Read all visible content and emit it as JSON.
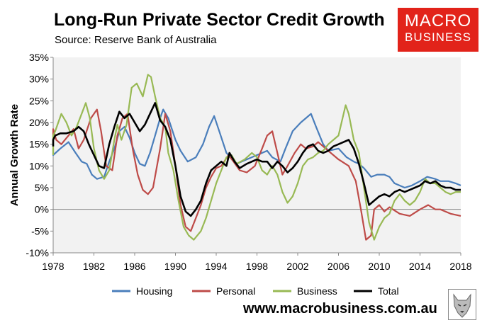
{
  "header": {
    "title": "Long-Run Private Sector Credit Growth",
    "subtitle": "Source: Reserve Bank of Australia"
  },
  "logo": {
    "line1": "MACRO",
    "line2": "BUSINESS"
  },
  "footer": {
    "url": "www.macrobusiness.com.au"
  },
  "colors": {
    "Housing": "#4a7ebb",
    "Personal": "#be4b48",
    "Business": "#98b954",
    "Total": "#000000",
    "logo_bg": "#e2231a",
    "plot_bg": "#f2f2f2"
  },
  "chart_data": {
    "type": "line",
    "title": "Long-Run Private Sector Credit Growth",
    "ylabel": "Annual Growth Rate",
    "xlim": [
      1978,
      2018
    ],
    "ylim": [
      -10,
      35
    ],
    "yticks": [
      "-10%",
      "-5%",
      "0%",
      "5%",
      "10%",
      "15%",
      "20%",
      "25%",
      "30%",
      "35%"
    ],
    "xticks": [
      "1978",
      "1982",
      "1986",
      "1990",
      "1994",
      "1998",
      "2002",
      "2006",
      "2010",
      "2014",
      "2018"
    ],
    "grid": false,
    "legend_position": "bottom",
    "series": [
      {
        "name": "Housing",
        "points": [
          [
            1977.2,
            14
          ],
          [
            1978,
            12.5
          ],
          [
            1978.7,
            14
          ],
          [
            1979.5,
            15.5
          ],
          [
            1980.2,
            13
          ],
          [
            1980.8,
            11
          ],
          [
            1981.3,
            10.5
          ],
          [
            1981.8,
            8
          ],
          [
            1982.3,
            7
          ],
          [
            1983,
            7.5
          ],
          [
            1983.5,
            11
          ],
          [
            1984,
            14
          ],
          [
            1984.5,
            18
          ],
          [
            1985,
            19
          ],
          [
            1985.5,
            16.5
          ],
          [
            1986,
            13
          ],
          [
            1986.5,
            10.5
          ],
          [
            1987,
            10
          ],
          [
            1987.5,
            13
          ],
          [
            1988,
            17
          ],
          [
            1988.5,
            21
          ],
          [
            1988.8,
            23
          ],
          [
            1989.3,
            21
          ],
          [
            1990,
            16
          ],
          [
            1990.5,
            13.5
          ],
          [
            1991.2,
            11
          ],
          [
            1992,
            12
          ],
          [
            1992.7,
            15
          ],
          [
            1993.3,
            19
          ],
          [
            1993.8,
            21.5
          ],
          [
            1994.3,
            18
          ],
          [
            1995,
            13
          ],
          [
            1996,
            10.5
          ],
          [
            1997,
            11.5
          ],
          [
            1998,
            12.5
          ],
          [
            1999,
            13.5
          ],
          [
            1999.5,
            12
          ],
          [
            2000.3,
            11
          ],
          [
            2000.8,
            14
          ],
          [
            2001.5,
            18
          ],
          [
            2002.3,
            20
          ],
          [
            2002.8,
            21
          ],
          [
            2003.3,
            22
          ],
          [
            2003.8,
            19
          ],
          [
            2004.5,
            15
          ],
          [
            2005,
            13.5
          ],
          [
            2006,
            14
          ],
          [
            2006.8,
            12
          ],
          [
            2007.5,
            11
          ],
          [
            2008,
            10.5
          ],
          [
            2008.5,
            9.5
          ],
          [
            2009.2,
            7.5
          ],
          [
            2009.8,
            8
          ],
          [
            2010.5,
            8
          ],
          [
            2011,
            7.5
          ],
          [
            2011.5,
            6
          ],
          [
            2012.5,
            5
          ],
          [
            2013.2,
            5.5
          ],
          [
            2014,
            6.5
          ],
          [
            2014.7,
            7.5
          ],
          [
            2015.5,
            7
          ],
          [
            2016,
            6.5
          ],
          [
            2016.8,
            6.5
          ],
          [
            2017.5,
            6
          ],
          [
            2018,
            5.5
          ]
        ]
      },
      {
        "name": "Personal",
        "points": [
          [
            1977.2,
            16
          ],
          [
            1977.7,
            18.5
          ],
          [
            1978.3,
            16
          ],
          [
            1978.8,
            15
          ],
          [
            1979.5,
            17
          ],
          [
            1980,
            18.5
          ],
          [
            1980.5,
            14
          ],
          [
            1981,
            16
          ],
          [
            1981.7,
            21
          ],
          [
            1982.3,
            23
          ],
          [
            1982.7,
            18
          ],
          [
            1983.2,
            10
          ],
          [
            1983.8,
            9
          ],
          [
            1984.3,
            17
          ],
          [
            1984.8,
            21
          ],
          [
            1985.3,
            22
          ],
          [
            1985.8,
            14
          ],
          [
            1986.3,
            8
          ],
          [
            1986.8,
            4.5
          ],
          [
            1987.3,
            3.5
          ],
          [
            1987.8,
            5
          ],
          [
            1988.5,
            14
          ],
          [
            1989,
            22
          ],
          [
            1989.5,
            18
          ],
          [
            1990,
            10
          ],
          [
            1990.5,
            1
          ],
          [
            1991,
            -4
          ],
          [
            1991.5,
            -5
          ],
          [
            1992,
            -2
          ],
          [
            1992.5,
            1
          ],
          [
            1993,
            5
          ],
          [
            1993.5,
            7.5
          ],
          [
            1994,
            9.5
          ],
          [
            1994.5,
            10
          ],
          [
            1995.2,
            12.5
          ],
          [
            1995.7,
            11
          ],
          [
            1996.3,
            9
          ],
          [
            1997,
            8.5
          ],
          [
            1997.8,
            10
          ],
          [
            1998.5,
            14
          ],
          [
            1999,
            17
          ],
          [
            1999.5,
            18
          ],
          [
            2000,
            13
          ],
          [
            2000.5,
            8
          ],
          [
            2001,
            10
          ],
          [
            2001.7,
            13
          ],
          [
            2002.3,
            15
          ],
          [
            2002.8,
            14
          ],
          [
            2003.5,
            14.5
          ],
          [
            2004,
            15.5
          ],
          [
            2005,
            13.5
          ],
          [
            2006,
            11.5
          ],
          [
            2007,
            10
          ],
          [
            2007.7,
            6.5
          ],
          [
            2008.2,
            0
          ],
          [
            2008.7,
            -7
          ],
          [
            2009.2,
            -6
          ],
          [
            2009.5,
            0
          ],
          [
            2010,
            1
          ],
          [
            2010.5,
            -0.5
          ],
          [
            2011,
            0.5
          ],
          [
            2012,
            -1
          ],
          [
            2013,
            -1.5
          ],
          [
            2014,
            0
          ],
          [
            2014.8,
            1
          ],
          [
            2015.5,
            0
          ],
          [
            2016,
            0
          ],
          [
            2017,
            -1
          ],
          [
            2018,
            -1.5
          ]
        ]
      },
      {
        "name": "Business",
        "points": [
          [
            1977.2,
            12.5
          ],
          [
            1977.7,
            17
          ],
          [
            1978.2,
            18
          ],
          [
            1978.8,
            22
          ],
          [
            1979.3,
            20
          ],
          [
            1979.8,
            17
          ],
          [
            1980.3,
            19
          ],
          [
            1980.8,
            22
          ],
          [
            1981.2,
            24.5
          ],
          [
            1981.6,
            21
          ],
          [
            1982,
            14
          ],
          [
            1982.5,
            9
          ],
          [
            1983,
            7
          ],
          [
            1983.5,
            9
          ],
          [
            1984,
            16
          ],
          [
            1984.3,
            19.5
          ],
          [
            1984.7,
            16
          ],
          [
            1985.2,
            19.5
          ],
          [
            1985.7,
            28
          ],
          [
            1986.2,
            29
          ],
          [
            1986.8,
            26
          ],
          [
            1987.3,
            31
          ],
          [
            1987.6,
            30.5
          ],
          [
            1988,
            26
          ],
          [
            1988.5,
            21
          ],
          [
            1989,
            19
          ],
          [
            1989.3,
            13
          ],
          [
            1989.8,
            9
          ],
          [
            1990.3,
            2
          ],
          [
            1990.8,
            -4
          ],
          [
            1991.3,
            -6
          ],
          [
            1991.8,
            -7
          ],
          [
            1992.5,
            -5
          ],
          [
            1993,
            -2
          ],
          [
            1993.5,
            2
          ],
          [
            1994,
            6
          ],
          [
            1994.5,
            9
          ],
          [
            1995,
            12
          ],
          [
            1995.5,
            12.5
          ],
          [
            1996,
            10.5
          ],
          [
            1996.8,
            11.5
          ],
          [
            1997.5,
            13
          ],
          [
            1998,
            12
          ],
          [
            1998.5,
            9
          ],
          [
            1999,
            8
          ],
          [
            1999.5,
            10
          ],
          [
            2000,
            8
          ],
          [
            2000.5,
            4
          ],
          [
            2001,
            1.5
          ],
          [
            2001.5,
            3
          ],
          [
            2002,
            6
          ],
          [
            2002.5,
            10
          ],
          [
            2003,
            11.5
          ],
          [
            2003.5,
            12
          ],
          [
            2004,
            13
          ],
          [
            2004.5,
            13.5
          ],
          [
            2005,
            15
          ],
          [
            2005.5,
            16
          ],
          [
            2006,
            17
          ],
          [
            2006.5,
            22
          ],
          [
            2006.7,
            24
          ],
          [
            2007,
            22
          ],
          [
            2007.5,
            16
          ],
          [
            2008,
            13
          ],
          [
            2008.5,
            5
          ],
          [
            2009,
            -3
          ],
          [
            2009.5,
            -7
          ],
          [
            2010,
            -4
          ],
          [
            2010.5,
            -2
          ],
          [
            2011,
            -1
          ],
          [
            2011.5,
            2
          ],
          [
            2012,
            3.5
          ],
          [
            2012.5,
            2
          ],
          [
            2013,
            1
          ],
          [
            2013.5,
            2
          ],
          [
            2014,
            4
          ],
          [
            2014.5,
            7
          ],
          [
            2015,
            6
          ],
          [
            2015.5,
            6
          ],
          [
            2016,
            5
          ],
          [
            2016.5,
            4
          ],
          [
            2017,
            3.5
          ],
          [
            2017.5,
            4
          ],
          [
            2018,
            4
          ]
        ]
      },
      {
        "name": "Total",
        "points": [
          [
            1977.2,
            14.5
          ],
          [
            1977.7,
            16
          ],
          [
            1978.2,
            17
          ],
          [
            1978.7,
            17.5
          ],
          [
            1979.3,
            17.5
          ],
          [
            1980,
            18
          ],
          [
            1980.5,
            19
          ],
          [
            1981,
            18
          ],
          [
            1981.5,
            15
          ],
          [
            1982,
            12.5
          ],
          [
            1982.5,
            10
          ],
          [
            1983,
            9.5
          ],
          [
            1983.5,
            15
          ],
          [
            1984,
            19
          ],
          [
            1984.5,
            22.5
          ],
          [
            1985,
            21
          ],
          [
            1985.5,
            22
          ],
          [
            1986,
            20
          ],
          [
            1986.5,
            18
          ],
          [
            1987,
            19.5
          ],
          [
            1987.5,
            22
          ],
          [
            1988,
            24.5
          ],
          [
            1988.5,
            20.5
          ],
          [
            1989,
            19
          ],
          [
            1989.5,
            16
          ],
          [
            1990,
            10
          ],
          [
            1990.5,
            3
          ],
          [
            1991,
            -0.5
          ],
          [
            1991.5,
            -1.5
          ],
          [
            1992,
            0
          ],
          [
            1992.5,
            2
          ],
          [
            1993,
            6
          ],
          [
            1993.5,
            9
          ],
          [
            1994,
            10
          ],
          [
            1994.5,
            11
          ],
          [
            1995,
            10
          ],
          [
            1995.3,
            13
          ],
          [
            1995.8,
            11
          ],
          [
            1996.3,
            9.5
          ],
          [
            1997,
            10.5
          ],
          [
            1998,
            11.5
          ],
          [
            1998.5,
            11
          ],
          [
            1999,
            11
          ],
          [
            1999.5,
            9.5
          ],
          [
            2000,
            11
          ],
          [
            2000.5,
            10
          ],
          [
            2001,
            8.5
          ],
          [
            2001.5,
            9.5
          ],
          [
            2002,
            11
          ],
          [
            2002.5,
            13
          ],
          [
            2003,
            14.5
          ],
          [
            2003.5,
            15
          ],
          [
            2004,
            13.5
          ],
          [
            2004.5,
            13
          ],
          [
            2005,
            13.5
          ],
          [
            2005.5,
            14.5
          ],
          [
            2006,
            15
          ],
          [
            2006.5,
            15.5
          ],
          [
            2007,
            16
          ],
          [
            2007.5,
            14
          ],
          [
            2008,
            10.5
          ],
          [
            2008.5,
            6
          ],
          [
            2009,
            1
          ],
          [
            2009.5,
            2
          ],
          [
            2010,
            3
          ],
          [
            2010.5,
            3.5
          ],
          [
            2011,
            3
          ],
          [
            2011.5,
            4
          ],
          [
            2012,
            4.5
          ],
          [
            2012.5,
            4
          ],
          [
            2013,
            4.5
          ],
          [
            2013.5,
            5
          ],
          [
            2014,
            5.5
          ],
          [
            2014.5,
            6.5
          ],
          [
            2015,
            6
          ],
          [
            2015.5,
            6.5
          ],
          [
            2016,
            5.5
          ],
          [
            2016.5,
            5
          ],
          [
            2017,
            5
          ],
          [
            2017.5,
            4.5
          ],
          [
            2018,
            4.5
          ]
        ]
      }
    ]
  }
}
